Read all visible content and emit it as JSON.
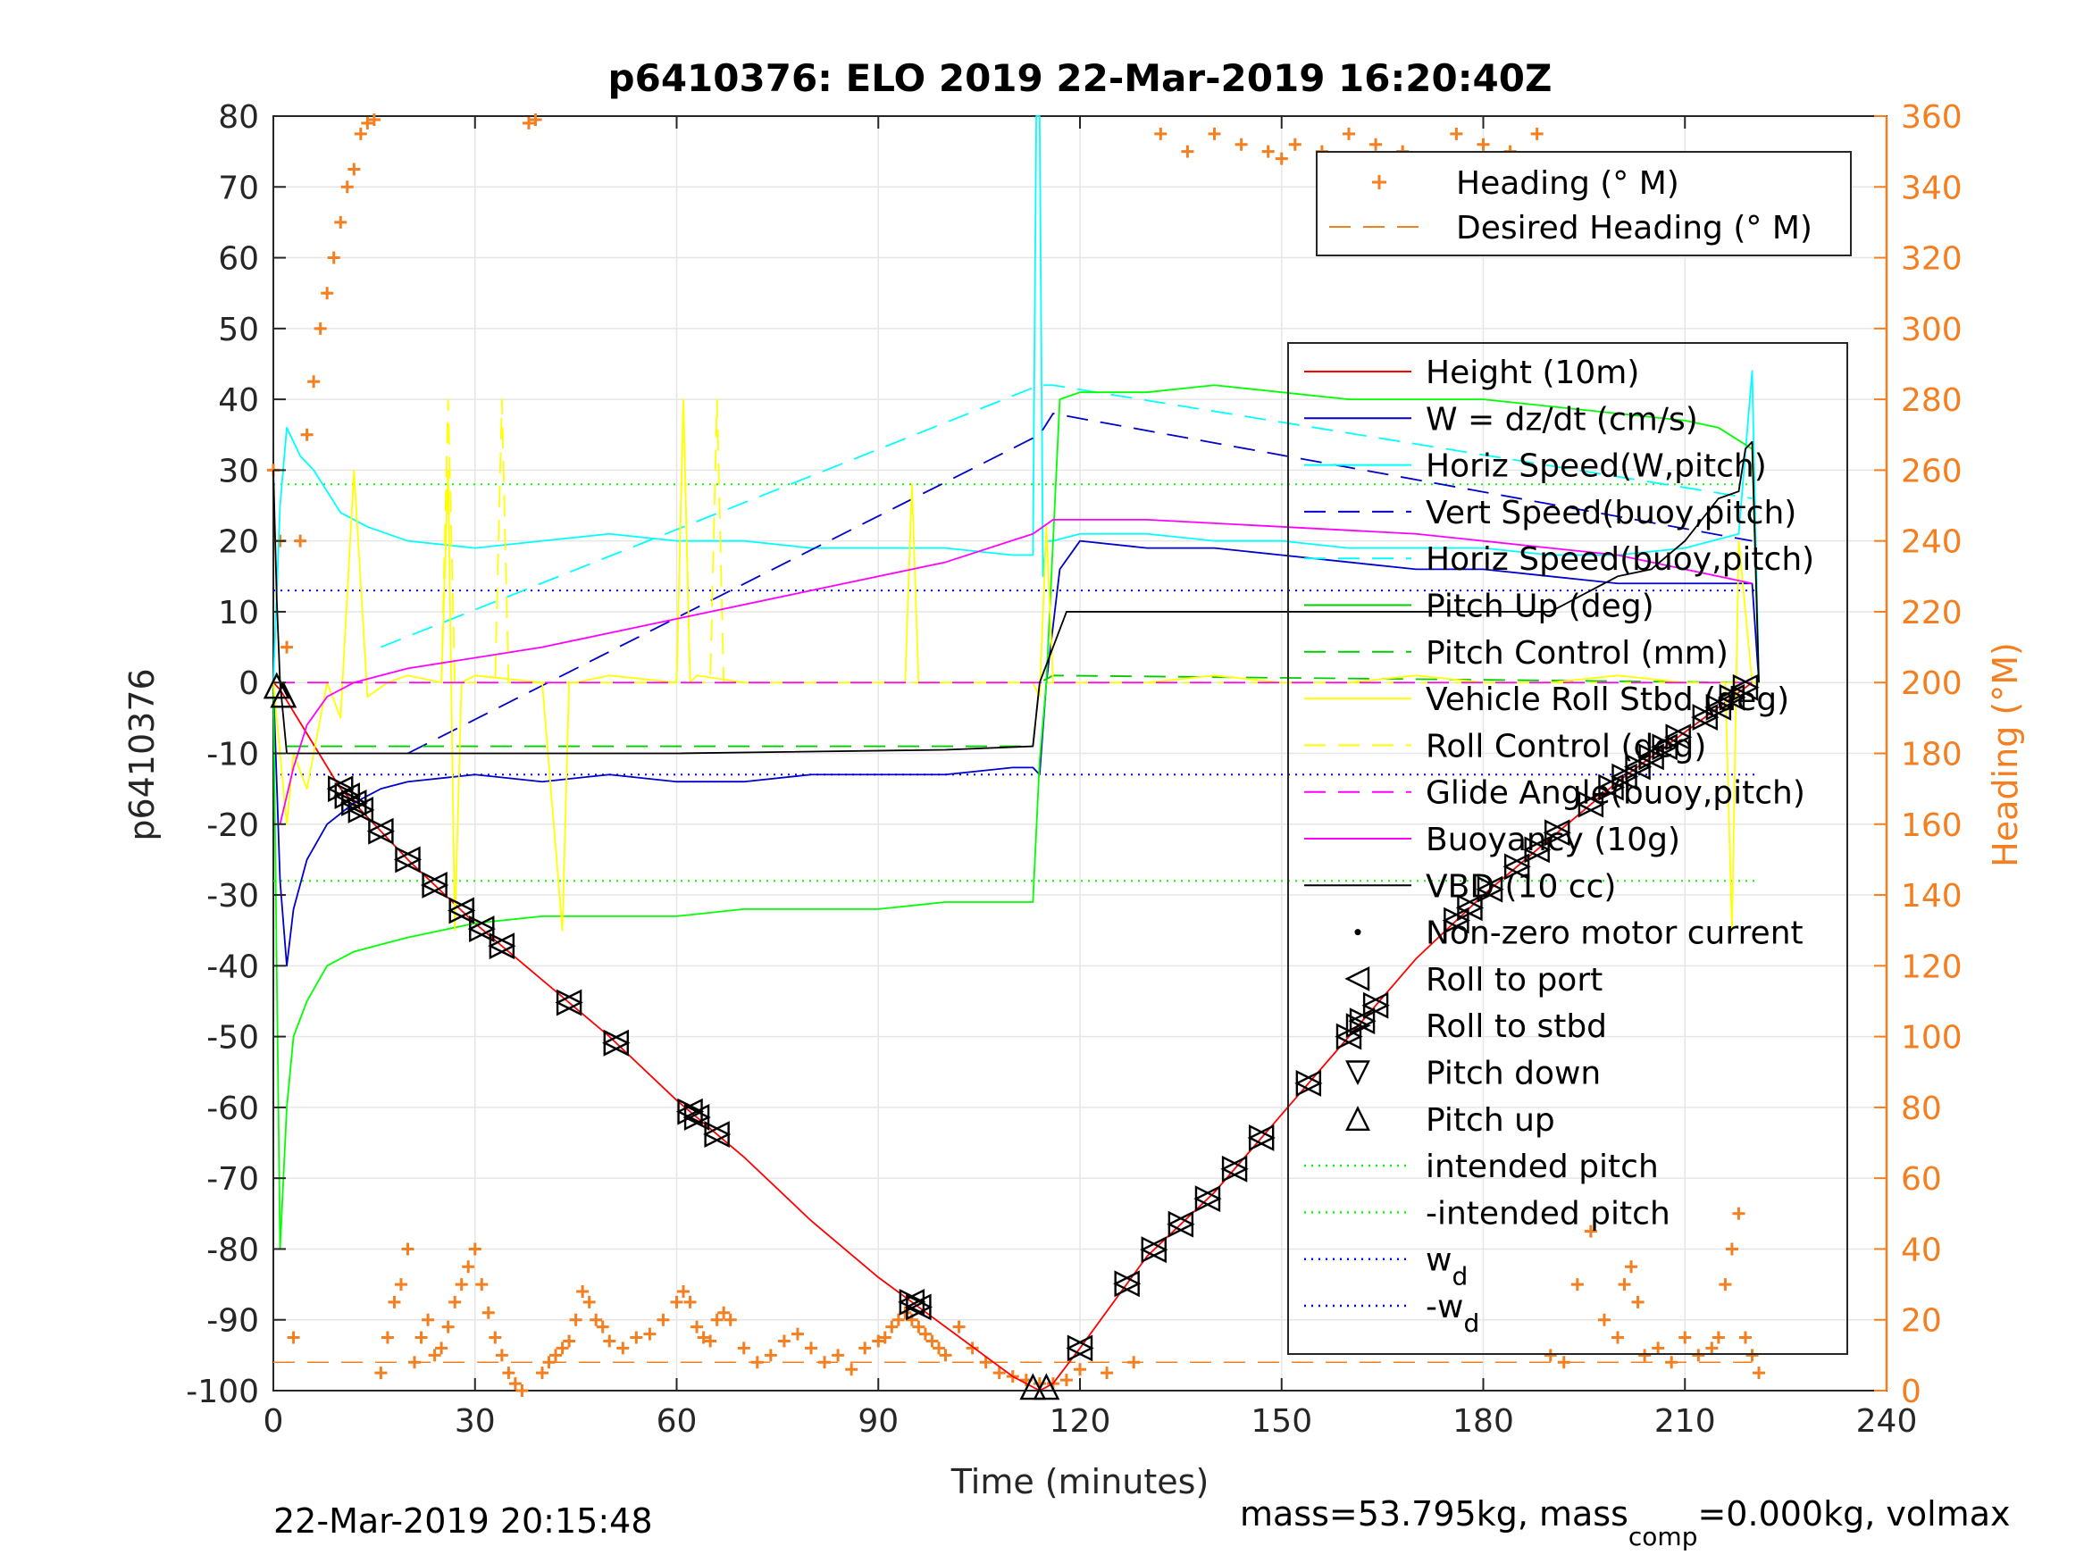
{
  "chart_data": {
    "type": "line",
    "title": "p6410376: ELO 2019 22-Mar-2019 16:20:40Z",
    "xlabel": "Time (minutes)",
    "ylabel": "p6410376",
    "y2label": "Heading (°M)",
    "xlim": [
      0,
      240
    ],
    "ylim": [
      -100,
      80
    ],
    "y2lim": [
      0,
      360
    ],
    "xticks": [
      "0",
      "30",
      "60",
      "90",
      "120",
      "150",
      "180",
      "210",
      "240"
    ],
    "yticks": [
      "80",
      "70",
      "60",
      "50",
      "40",
      "30",
      "20",
      "10",
      "0",
      "-10",
      "-20",
      "-30",
      "-40",
      "-50",
      "-60",
      "-70",
      "-80",
      "-90",
      "-100"
    ],
    "y2ticks": [
      "360",
      "340",
      "320",
      "300",
      "280",
      "260",
      "240",
      "220",
      "200",
      "180",
      "160",
      "140",
      "120",
      "100",
      "80",
      "60",
      "40",
      "20",
      "0"
    ],
    "grid": true,
    "footer_left": "22-Mar-2019 20:15:48",
    "footer_right": {
      "pre": "mass=53.795kg, mass",
      "sub": "comp",
      "post": "=0.000kg, volmax"
    },
    "legend_top": [
      {
        "name": "Heading (° M)",
        "color": "#f47f20",
        "style": "plus"
      },
      {
        "name": "Desired Heading (° M)",
        "color": "#f47f20",
        "style": "dash"
      }
    ],
    "legend_main": [
      {
        "name": "Height (10m)",
        "color": "#ff0000",
        "style": "solid"
      },
      {
        "name": "W = dz/dt (cm/s)",
        "color": "#0000cc",
        "style": "solid"
      },
      {
        "name": "Horiz Speed(W,pitch)",
        "color": "#00ffff",
        "style": "solid"
      },
      {
        "name": "Vert Speed(buoy,pitch)",
        "color": "#0000cc",
        "style": "dash"
      },
      {
        "name": "Horiz Speed(buoy,pitch)",
        "color": "#00ffff",
        "style": "dash"
      },
      {
        "name": "Pitch Up (deg)",
        "color": "#00cc00",
        "style": "solid"
      },
      {
        "name": "Pitch Control (mm)",
        "color": "#00cc00",
        "style": "dash"
      },
      {
        "name": "Vehicle Roll Stbd (deg)",
        "color": "#ffff00",
        "style": "solid"
      },
      {
        "name": "Roll Control (deg)",
        "color": "#ffff00",
        "style": "dash"
      },
      {
        "name": "Glide Angle(buoy,pitch)",
        "color": "#ff00ff",
        "style": "dash"
      },
      {
        "name": "Buoyancy (10g)",
        "color": "#ff00ff",
        "style": "solid"
      },
      {
        "name": "VBD (10 cc)",
        "color": "#000000",
        "style": "solid"
      },
      {
        "name": "Non-zero motor current",
        "color": "#000000",
        "style": "dot"
      },
      {
        "name": "Roll to port",
        "color": "#000000",
        "style": "tri-left"
      },
      {
        "name": "Roll to stbd",
        "color": "#000000",
        "style": "tri-right"
      },
      {
        "name": "Pitch down",
        "color": "#000000",
        "style": "tri-down"
      },
      {
        "name": "Pitch up",
        "color": "#000000",
        "style": "tri-up"
      },
      {
        "name": "intended pitch",
        "color": "#00ff00",
        "style": "dotted"
      },
      {
        "name": "-intended pitch",
        "color": "#00ff00",
        "style": "dotted"
      },
      {
        "name": "w",
        "sub": "d",
        "color": "#0000ff",
        "style": "dotted"
      },
      {
        "name": "-w",
        "sub": "d",
        "color": "#0000ff",
        "style": "dotted"
      }
    ],
    "series": [
      {
        "name": "Height (10m)",
        "color": "#ff0000",
        "dash": "",
        "axis": "left",
        "x": [
          0,
          1,
          10,
          20,
          30,
          40,
          50,
          60,
          70,
          80,
          90,
          100,
          110,
          114,
          116,
          120,
          130,
          140,
          150,
          160,
          170,
          180,
          190,
          200,
          210,
          220,
          221
        ],
        "y": [
          0,
          -1,
          -15,
          -25,
          -34,
          -42,
          -50,
          -59,
          -67,
          -76,
          -84,
          -91,
          -98,
          -100,
          -99,
          -94,
          -81,
          -72,
          -61,
          -50,
          -39,
          -30,
          -22,
          -14,
          -7,
          0,
          0
        ]
      },
      {
        "name": "W = dz/dt (cm/s)",
        "color": "#0000cc",
        "dash": "",
        "axis": "left",
        "x": [
          0,
          1,
          2,
          3,
          5,
          8,
          12,
          16,
          20,
          30,
          40,
          50,
          60,
          70,
          80,
          90,
          100,
          110,
          113,
          114,
          115,
          117,
          120,
          130,
          140,
          150,
          160,
          170,
          180,
          190,
          200,
          210,
          220,
          221
        ],
        "y": [
          0,
          -28,
          -40,
          -32,
          -25,
          -20,
          -17,
          -15,
          -14,
          -13,
          -14,
          -13,
          -14,
          -14,
          -13,
          -13,
          -13,
          -12,
          -12,
          -13,
          0,
          16,
          20,
          19,
          19,
          18,
          17,
          16,
          16,
          15,
          14,
          14,
          14,
          0
        ]
      },
      {
        "name": "Horiz Speed(W,pitch)",
        "color": "#00ffff",
        "dash": "",
        "axis": "left",
        "x": [
          0,
          1,
          2,
          4,
          6,
          10,
          14,
          20,
          30,
          40,
          50,
          60,
          70,
          80,
          90,
          100,
          110,
          113,
          113.5,
          114,
          114.5,
          115,
          116,
          120,
          130,
          140,
          150,
          160,
          170,
          180,
          190,
          200,
          210,
          218,
          220,
          221
        ],
        "y": [
          0,
          25,
          36,
          32,
          30,
          24,
          22,
          20,
          19,
          20,
          21,
          20,
          20,
          19,
          19,
          19,
          18,
          18,
          80,
          80,
          15,
          20,
          20,
          21,
          21,
          20,
          20,
          19,
          19,
          19,
          18,
          18,
          19,
          21,
          44,
          0
        ]
      },
      {
        "name": "Vert Speed(buoy,pitch)",
        "color": "#0000cc",
        "dash": "24,14",
        "axis": "left",
        "x": [
          20,
          114,
          116,
          220
        ],
        "y": [
          -10,
          35,
          38,
          20
        ]
      },
      {
        "name": "Horiz Speed(buoy,pitch)",
        "color": "#00ffff",
        "dash": "24,14",
        "axis": "left",
        "x": [
          16,
          114,
          116,
          220
        ],
        "y": [
          5,
          42,
          42,
          26
        ]
      },
      {
        "name": "Pitch Up (deg)",
        "color": "#00ff00",
        "dash": "",
        "axis": "left",
        "x": [
          0,
          1,
          2,
          3,
          5,
          8,
          12,
          16,
          20,
          30,
          40,
          50,
          60,
          70,
          80,
          90,
          100,
          110,
          113,
          114,
          115,
          117,
          120,
          130,
          140,
          150,
          160,
          170,
          180,
          190,
          200,
          210,
          215,
          220,
          221
        ],
        "y": [
          0,
          -80,
          -60,
          -50,
          -45,
          -40,
          -38,
          -37,
          -36,
          -34,
          -33,
          -33,
          -33,
          -32,
          -32,
          -32,
          -31,
          -31,
          -31,
          -11,
          0,
          40,
          41,
          41,
          42,
          41,
          40,
          40,
          40,
          39,
          38,
          37,
          36,
          33,
          0
        ]
      },
      {
        "name": "Pitch Control (mm)",
        "color": "#00cc00",
        "dash": "24,14",
        "axis": "left",
        "x": [
          2,
          20,
          60,
          100,
          113,
          114,
          116,
          220
        ],
        "y": [
          -9,
          -9,
          -9,
          -9,
          -9,
          0,
          1,
          0
        ]
      },
      {
        "name": "Vehicle Roll Stbd (deg)",
        "color": "#ffff00",
        "dash": "",
        "axis": "left",
        "x": [
          0,
          2,
          3,
          5,
          8,
          10,
          12,
          14,
          17,
          20,
          25,
          26,
          27,
          28,
          30,
          40,
          43,
          44,
          45,
          50,
          60,
          61,
          62,
          63,
          70,
          80,
          94,
          95,
          96,
          100,
          110,
          113,
          114,
          115,
          116,
          120,
          130,
          140,
          150,
          160,
          170,
          180,
          190,
          200,
          210,
          216,
          217,
          218,
          220,
          221
        ],
        "y": [
          0,
          -20,
          -10,
          -15,
          0,
          -5,
          30,
          -2,
          0,
          1,
          0,
          30,
          -35,
          0,
          1,
          0,
          -35,
          0,
          0,
          1,
          0,
          40,
          0,
          1,
          0,
          0,
          0,
          28,
          0,
          0,
          0,
          0,
          -2,
          22,
          0,
          0,
          0,
          1,
          0,
          0,
          1,
          0,
          0,
          1,
          0,
          0,
          -35,
          20,
          0,
          0
        ]
      },
      {
        "name": "Roll Control (deg)",
        "color": "#ffff00",
        "dash": "24,14",
        "axis": "left",
        "x": [
          0,
          10,
          20,
          25,
          26,
          27,
          30,
          33,
          34,
          35,
          60,
          61,
          62,
          63,
          65,
          66,
          67,
          110,
          220
        ],
        "y": [
          0,
          0,
          0,
          0,
          40,
          0,
          0,
          0,
          40,
          0,
          0,
          40,
          0,
          0,
          0,
          40,
          0,
          0,
          0
        ]
      },
      {
        "name": "Glide Angle(buoy,pitch)",
        "color": "#ff00ff",
        "dash": "24,14",
        "axis": "left",
        "x": [
          0,
          113,
          114,
          220
        ],
        "y": [
          0,
          0,
          0,
          0
        ]
      },
      {
        "name": "Buoyancy (10g)",
        "color": "#ff00ff",
        "dash": "",
        "axis": "left",
        "x": [
          1,
          3,
          5,
          8,
          12,
          16,
          20,
          40,
          60,
          80,
          100,
          113,
          116,
          130,
          150,
          170,
          190,
          200,
          210,
          220
        ],
        "y": [
          -20,
          -12,
          -6,
          -2,
          0,
          1,
          2,
          5,
          9,
          13,
          17,
          21,
          23,
          23,
          22,
          21,
          19,
          18,
          16,
          14
        ]
      },
      {
        "name": "VBD (10 cc)",
        "color": "#000000",
        "dash": "",
        "axis": "left",
        "x": [
          0,
          0.5,
          1,
          2,
          4,
          20,
          60,
          100,
          113,
          114,
          116,
          118,
          150,
          190,
          200,
          205,
          210,
          215,
          218,
          219,
          220,
          221
        ],
        "y": [
          30,
          12,
          0,
          -10,
          -10,
          -10,
          -10,
          -9.5,
          -9,
          0,
          5,
          10,
          10,
          10,
          15,
          16,
          20,
          26,
          27,
          33,
          34,
          0
        ]
      }
    ],
    "reference_lines": [
      {
        "name": "intended pitch",
        "y": 28,
        "color": "#00ff00"
      },
      {
        "name": "-intended pitch",
        "y": -28,
        "color": "#00ff00"
      },
      {
        "name": "w_d",
        "y": 13,
        "color": "#0000ff"
      },
      {
        "name": "-w_d",
        "y": -13,
        "color": "#0000ff"
      }
    ],
    "desired_heading": {
      "x": [
        0,
        220
      ],
      "y": [
        8,
        8
      ]
    },
    "heading_points": {
      "x": [
        0,
        1,
        2,
        3,
        4,
        5,
        6,
        7,
        8,
        9,
        10,
        11,
        12,
        13,
        14,
        15,
        16,
        17,
        18,
        19,
        20,
        21,
        22,
        23,
        24,
        25,
        26,
        27,
        28,
        29,
        30,
        31,
        32,
        33,
        34,
        35,
        36,
        37,
        38,
        39,
        40,
        41,
        42,
        43,
        44,
        45,
        46,
        47,
        48,
        49,
        50,
        52,
        54,
        56,
        58,
        60,
        61,
        62,
        63,
        64,
        65,
        66,
        67,
        68,
        70,
        72,
        74,
        76,
        78,
        80,
        82,
        84,
        86,
        88,
        90,
        91,
        92,
        93,
        94,
        95,
        96,
        97,
        98,
        99,
        100,
        102,
        104,
        106,
        108,
        110,
        112,
        114,
        116,
        118,
        120,
        124,
        128,
        132,
        136,
        140,
        144,
        148,
        150,
        152,
        156,
        160,
        164,
        168,
        172,
        176,
        180,
        184,
        188,
        190,
        192,
        194,
        196,
        198,
        200,
        201,
        202,
        203,
        204,
        206,
        208,
        210,
        212,
        214,
        215,
        216,
        217,
        218,
        219,
        220,
        221
      ],
      "y": [
        260,
        240,
        210,
        15,
        240,
        270,
        285,
        300,
        310,
        320,
        330,
        340,
        345,
        355,
        358,
        359,
        5,
        15,
        25,
        30,
        40,
        8,
        15,
        20,
        10,
        12,
        18,
        25,
        30,
        35,
        40,
        30,
        22,
        15,
        10,
        5,
        2,
        0,
        358,
        359,
        5,
        8,
        10,
        12,
        14,
        20,
        28,
        25,
        20,
        18,
        14,
        12,
        15,
        16,
        20,
        25,
        28,
        25,
        18,
        15,
        14,
        20,
        22,
        20,
        12,
        8,
        10,
        14,
        16,
        12,
        8,
        10,
        6,
        12,
        14,
        15,
        18,
        20,
        22,
        20,
        18,
        16,
        14,
        12,
        10,
        18,
        12,
        8,
        5,
        4,
        3,
        2,
        2,
        3,
        6,
        5,
        8,
        355,
        350,
        355,
        352,
        350,
        348,
        352,
        350,
        355,
        352,
        350,
        348,
        355,
        352,
        350,
        355,
        10,
        8,
        30,
        45,
        20,
        15,
        30,
        35,
        25,
        10,
        12,
        8,
        15,
        10,
        12,
        15,
        30,
        40,
        50,
        15,
        10,
        5
      ]
    }
  }
}
